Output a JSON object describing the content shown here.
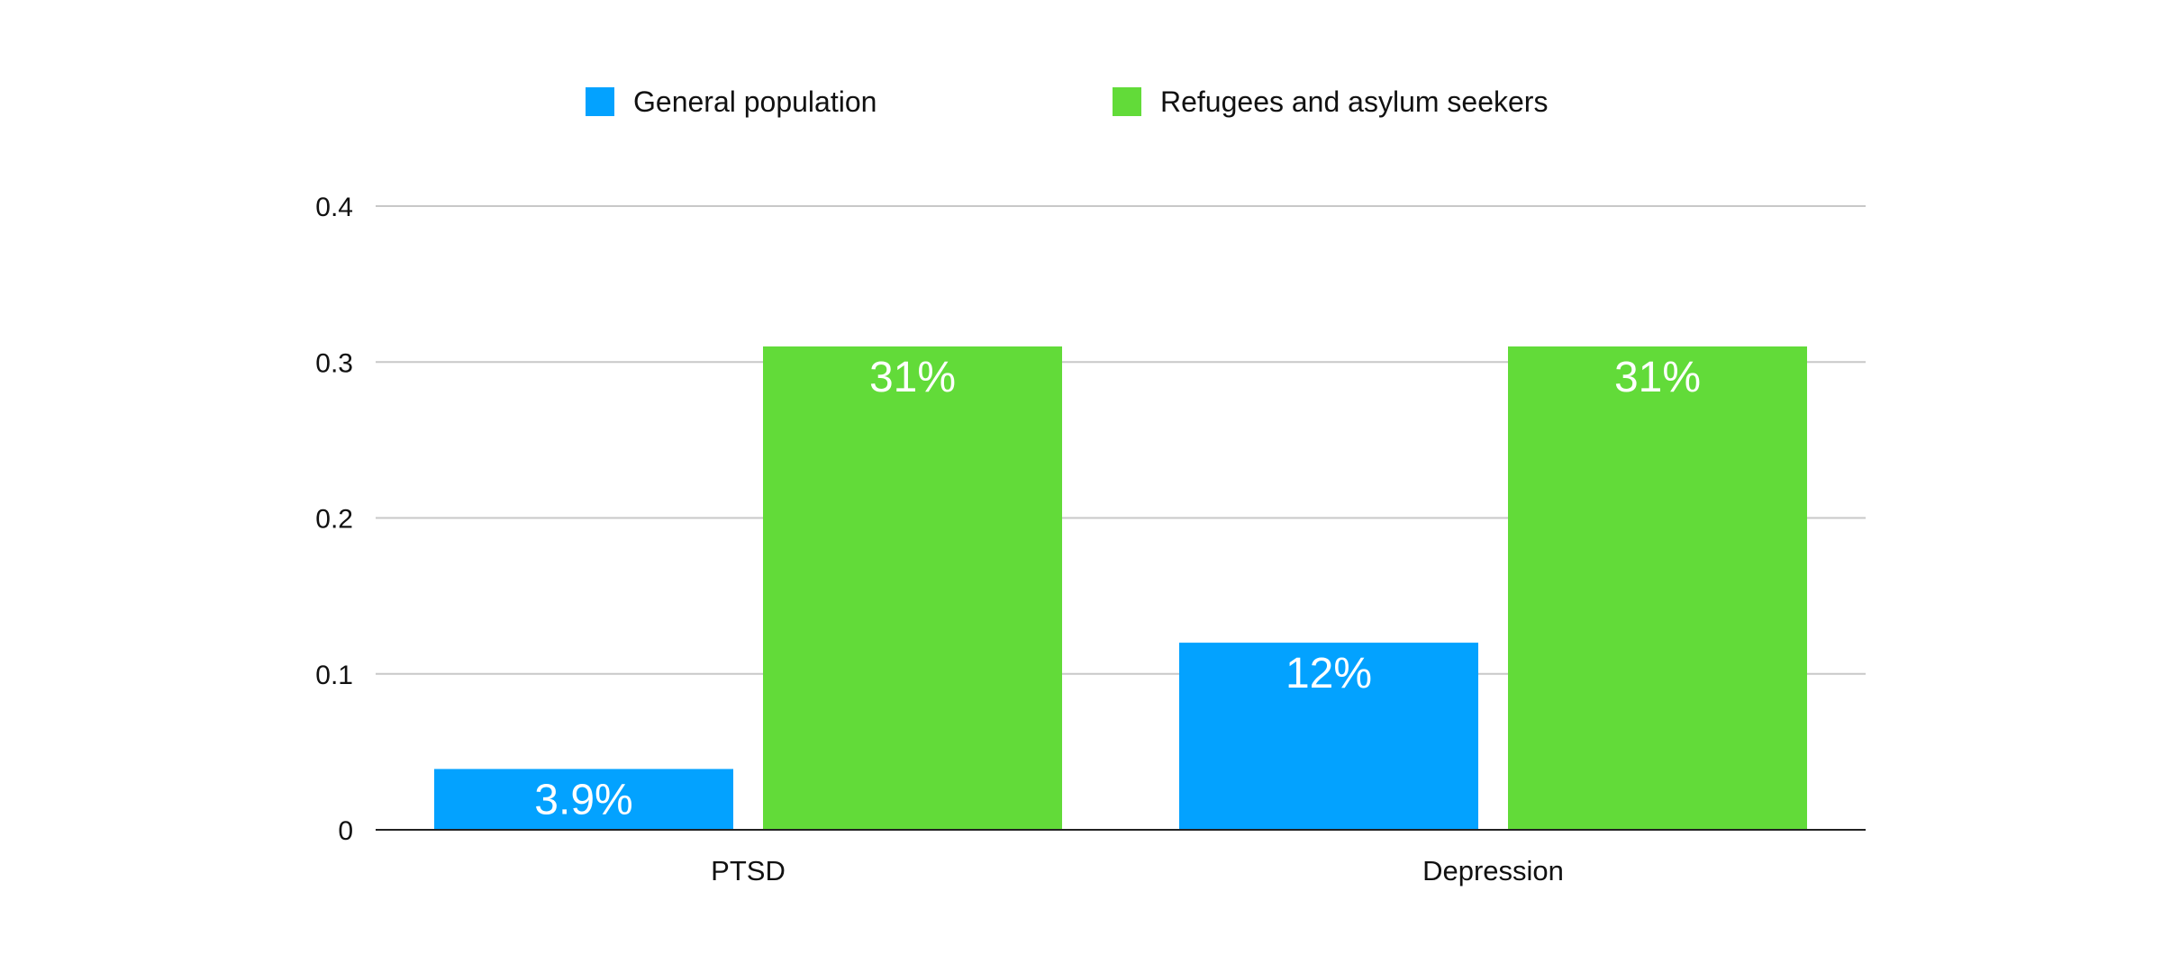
{
  "chart_data": {
    "type": "bar",
    "title": "",
    "xlabel": "",
    "ylabel": "",
    "categories": [
      "PTSD",
      "Depression"
    ],
    "series": [
      {
        "name": "General population",
        "color": "#03A2FF",
        "values": [
          0.039,
          0.12
        ],
        "labels": [
          "3.9%",
          "12%"
        ]
      },
      {
        "name": "Refugees and asylum seekers",
        "color": "#62DB39",
        "values": [
          0.31,
          0.31
        ],
        "labels": [
          "31%",
          "31%"
        ]
      }
    ],
    "ylim": [
      0,
      0.4
    ],
    "yticks": [
      0,
      0.1,
      0.2,
      0.3,
      0.4
    ],
    "ytick_labels": [
      "0",
      "0.1",
      "0.2",
      "0.3",
      "0.4"
    ],
    "grid": true,
    "legend_position": "top-center"
  }
}
